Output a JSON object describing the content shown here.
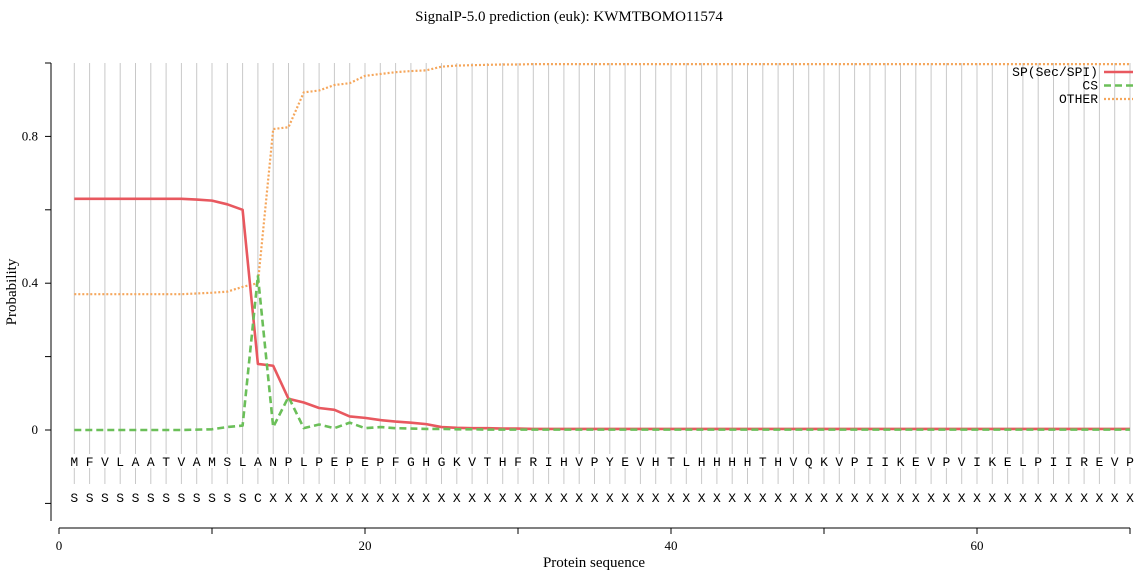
{
  "chart_data": {
    "type": "line",
    "title": "SignalP-5.0 prediction (euk):  KWMTBOMO11574",
    "xlabel": "Protein sequence",
    "ylabel": "Probability",
    "xlim": [
      0,
      70
    ],
    "ylim": [
      -0.25,
      1.0
    ],
    "x_ticks": [
      0,
      20,
      40,
      60
    ],
    "y_ticks": [
      0,
      0.4,
      0.8
    ],
    "y_tick_labels": [
      "0",
      "0.4",
      "0.8"
    ],
    "grid": "vertical lines at each residue",
    "legend_position": "top-right",
    "sequence": [
      "M",
      "F",
      "V",
      "L",
      "A",
      "A",
      "T",
      "V",
      "A",
      "M",
      "S",
      "L",
      "A",
      "N",
      "P",
      "L",
      "P",
      "E",
      "P",
      "E",
      "P",
      "F",
      "G",
      "H",
      "G",
      "K",
      "V",
      "T",
      "H",
      "F",
      "R",
      "I",
      "H",
      "V",
      "P",
      "Y",
      "E",
      "V",
      "H",
      "T",
      "L",
      "H",
      "H",
      "H",
      "H",
      "T",
      "H",
      "V",
      "Q",
      "K",
      "V",
      "P",
      "I",
      "I",
      "K",
      "E",
      "V",
      "P",
      "V",
      "I",
      "K",
      "E",
      "L",
      "P",
      "I",
      "I",
      "R",
      "E",
      "V",
      "P"
    ],
    "annotation": [
      "S",
      "S",
      "S",
      "S",
      "S",
      "S",
      "S",
      "S",
      "S",
      "S",
      "S",
      "S",
      "C",
      "X",
      "X",
      "X",
      "X",
      "X",
      "X",
      "X",
      "X",
      "X",
      "X",
      "X",
      "X",
      "X",
      "X",
      "X",
      "X",
      "X",
      "X",
      "X",
      "X",
      "X",
      "X",
      "X",
      "X",
      "X",
      "X",
      "X",
      "X",
      "X",
      "X",
      "X",
      "X",
      "X",
      "X",
      "X",
      "X",
      "X",
      "X",
      "X",
      "X",
      "X",
      "X",
      "X",
      "X",
      "X",
      "X",
      "X",
      "X",
      "X",
      "X",
      "X",
      "X",
      "X",
      "X",
      "X",
      "X",
      "X"
    ],
    "series": [
      {
        "name": "SP(Sec/SPI)",
        "color": "#e8585f",
        "style": "solid",
        "values": [
          0.63,
          0.63,
          0.63,
          0.63,
          0.63,
          0.63,
          0.63,
          0.63,
          0.628,
          0.625,
          0.615,
          0.6,
          0.18,
          0.175,
          0.085,
          0.075,
          0.06,
          0.055,
          0.037,
          0.033,
          0.027,
          0.023,
          0.02,
          0.016,
          0.008,
          0.006,
          0.005,
          0.005,
          0.004,
          0.004,
          0.003,
          0.003,
          0.003,
          0.003,
          0.003,
          0.003,
          0.003,
          0.003,
          0.003,
          0.003,
          0.003,
          0.003,
          0.003,
          0.003,
          0.003,
          0.003,
          0.003,
          0.003,
          0.003,
          0.003,
          0.003,
          0.003,
          0.003,
          0.003,
          0.003,
          0.003,
          0.003,
          0.003,
          0.003,
          0.003,
          0.003,
          0.003,
          0.003,
          0.003,
          0.003,
          0.003,
          0.003,
          0.003,
          0.003,
          0.003
        ]
      },
      {
        "name": "CS",
        "color": "#6bbf59",
        "style": "dashed",
        "values": [
          0.0,
          0.0,
          0.0,
          0.0,
          0.0,
          0.0,
          0.0,
          0.0,
          0.001,
          0.002,
          0.008,
          0.012,
          0.42,
          0.008,
          0.09,
          0.005,
          0.015,
          0.005,
          0.02,
          0.005,
          0.008,
          0.005,
          0.004,
          0.003,
          0.003,
          0.002,
          0.002,
          0.001,
          0.001,
          0.001,
          0.001,
          0.001,
          0.001,
          0.001,
          0.001,
          0.001,
          0.001,
          0.001,
          0.001,
          0.001,
          0.001,
          0.001,
          0.001,
          0.001,
          0.001,
          0.001,
          0.001,
          0.001,
          0.001,
          0.001,
          0.001,
          0.001,
          0.001,
          0.001,
          0.001,
          0.001,
          0.001,
          0.001,
          0.001,
          0.001,
          0.001,
          0.001,
          0.001,
          0.001,
          0.001,
          0.001,
          0.001,
          0.001,
          0.001,
          0.001
        ]
      },
      {
        "name": "OTHER",
        "color": "#f5a65b",
        "style": "dotted",
        "values": [
          0.37,
          0.37,
          0.37,
          0.37,
          0.37,
          0.37,
          0.37,
          0.37,
          0.372,
          0.374,
          0.377,
          0.39,
          0.4,
          0.82,
          0.825,
          0.92,
          0.925,
          0.94,
          0.945,
          0.965,
          0.97,
          0.975,
          0.978,
          0.98,
          0.99,
          0.993,
          0.994,
          0.995,
          0.996,
          0.996,
          0.997,
          0.997,
          0.997,
          0.997,
          0.997,
          0.997,
          0.997,
          0.997,
          0.997,
          0.997,
          0.997,
          0.997,
          0.997,
          0.997,
          0.997,
          0.997,
          0.997,
          0.997,
          0.997,
          0.997,
          0.997,
          0.997,
          0.997,
          0.997,
          0.997,
          0.997,
          0.997,
          0.997,
          0.997,
          0.997,
          0.997,
          0.997,
          0.997,
          0.997,
          0.997,
          0.997,
          0.997,
          0.997,
          0.997,
          0.997
        ]
      }
    ]
  }
}
